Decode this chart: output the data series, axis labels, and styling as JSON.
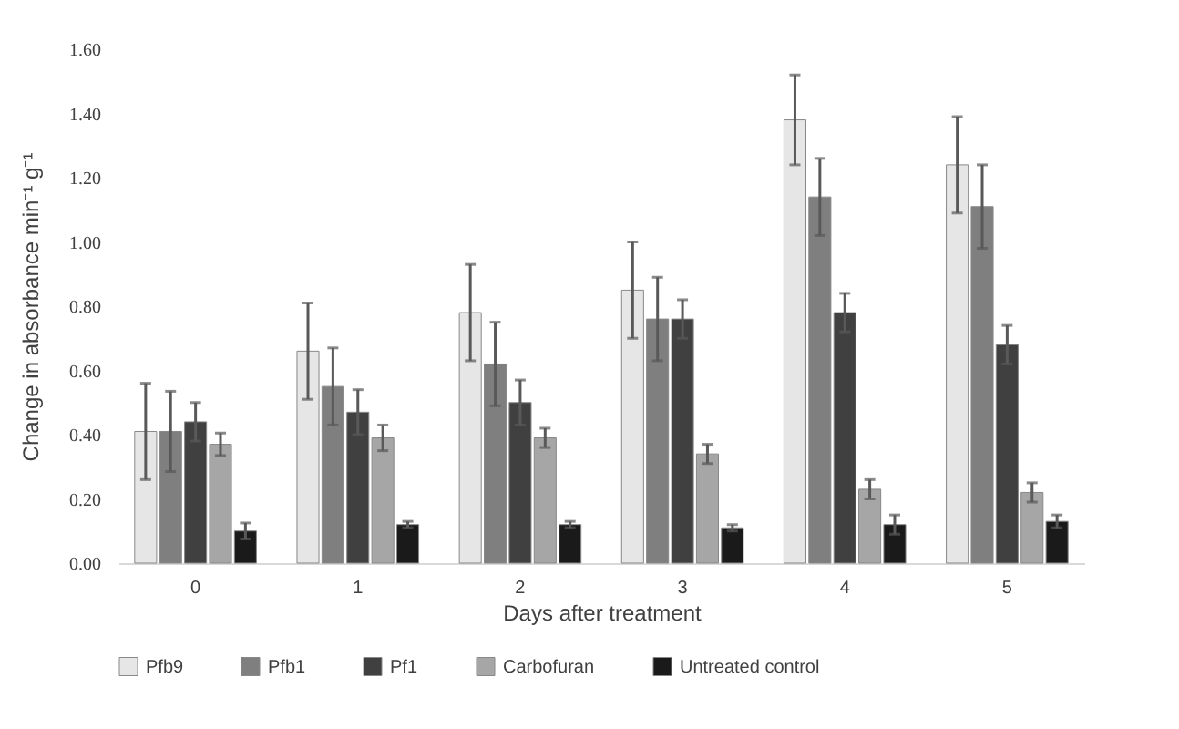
{
  "chart_data": {
    "type": "bar",
    "xlabel": "Days after treatment",
    "ylabel": "Change in absorbance  min⁻¹ g⁻¹",
    "categories": [
      "0",
      "1",
      "2",
      "3",
      "4",
      "5"
    ],
    "series": [
      {
        "name": "Pfb9",
        "color": "#e6e6e6",
        "values": [
          0.41,
          0.66,
          0.78,
          0.85,
          1.38,
          1.24
        ],
        "errors": [
          0.15,
          0.15,
          0.15,
          0.15,
          0.14,
          0.15
        ]
      },
      {
        "name": "Pfb1",
        "color": "#7f7f7f",
        "values": [
          0.41,
          0.55,
          0.62,
          0.76,
          1.14,
          1.11
        ],
        "errors": [
          0.125,
          0.12,
          0.13,
          0.13,
          0.12,
          0.13
        ]
      },
      {
        "name": "Pf1",
        "color": "#404040",
        "values": [
          0.44,
          0.47,
          0.5,
          0.76,
          0.78,
          0.68
        ],
        "errors": [
          0.06,
          0.07,
          0.07,
          0.06,
          0.06,
          0.06
        ]
      },
      {
        "name": "Carbofuran",
        "color": "#a6a6a6",
        "values": [
          0.37,
          0.39,
          0.39,
          0.34,
          0.23,
          0.22
        ],
        "errors": [
          0.035,
          0.04,
          0.03,
          0.03,
          0.03,
          0.03
        ]
      },
      {
        "name": "Untreated control",
        "color": "#1a1a1a",
        "values": [
          0.1,
          0.12,
          0.12,
          0.11,
          0.12,
          0.13
        ],
        "errors": [
          0.025,
          0.01,
          0.01,
          0.01,
          0.03,
          0.02
        ]
      }
    ],
    "ylim": [
      0,
      1.6
    ],
    "yticks": [
      {
        "value": 0,
        "label": "0.00"
      },
      {
        "value": 0.2,
        "label": "0.20"
      },
      {
        "value": 0.4,
        "label": "0.40"
      },
      {
        "value": 0.6,
        "label": "0.60"
      },
      {
        "value": 0.8,
        "label": "0.80"
      },
      {
        "value": 1.0,
        "label": "1.00"
      },
      {
        "value": 1.2,
        "label": "1.20"
      },
      {
        "value": 1.4,
        "label": "1.40"
      },
      {
        "value": 1.6,
        "label": "1.60"
      }
    ],
    "grid": false,
    "legend": "bottom"
  }
}
